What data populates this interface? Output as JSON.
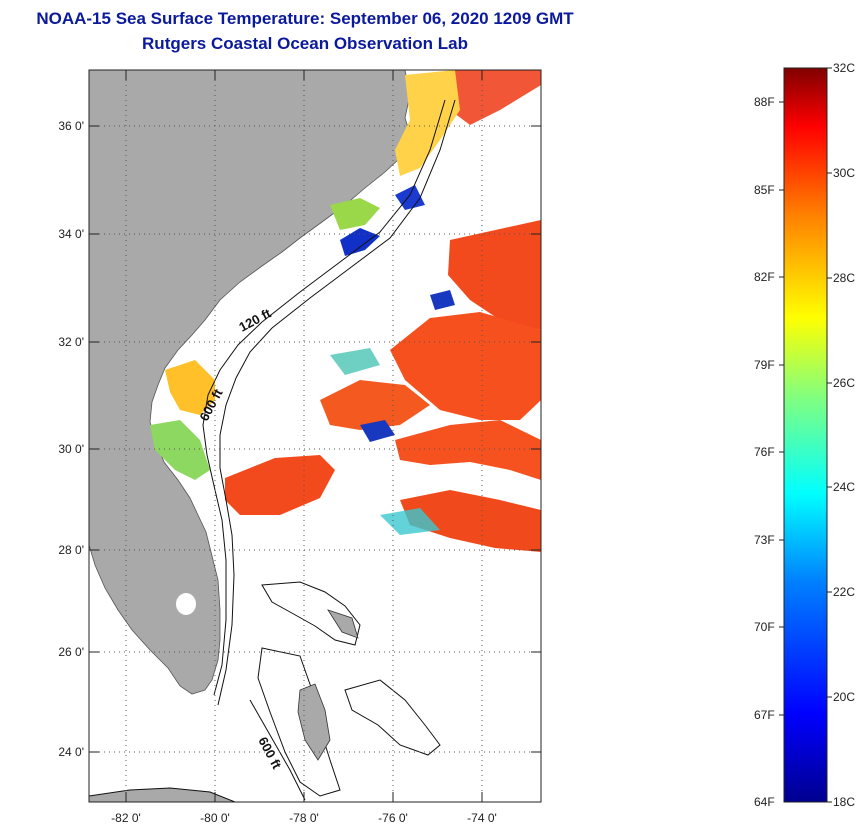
{
  "header": {
    "title": "NOAA-15 Sea Surface Temperature:  September 06, 2020 1209 GMT",
    "subtitle": "Rutgers Coastal Ocean Observation Lab"
  },
  "map": {
    "longitude_labels": [
      "-82 0'",
      "-80 0'",
      "-78 0'",
      "-76 0'",
      "-74 0'"
    ],
    "latitude_labels": [
      "36 0'",
      "34 0'",
      "32 0'",
      "30 0'",
      "28 0'",
      "26 0'",
      "24 0'"
    ],
    "contour_labels": [
      "120 ft",
      "600 ft",
      "600 ft"
    ],
    "colors": {
      "land": "#a9a9a9",
      "ocean_no_data": "#ffffff",
      "warm": "#f6461e",
      "hot": "#e8281a",
      "mid": "#ffb400",
      "cool": "#29c8e0",
      "cold": "#1030c8"
    }
  },
  "colorbar": {
    "fahrenheit_labels": [
      "88F",
      "85F",
      "82F",
      "79F",
      "76F",
      "73F",
      "70F",
      "67F",
      "64F"
    ],
    "celsius_labels": [
      "32C",
      "30C",
      "28C",
      "26C",
      "24C",
      "22C",
      "20C",
      "18C"
    ],
    "range_celsius": [
      18,
      32
    ],
    "colors": [
      "#00008f",
      "#0000ff",
      "#0080ff",
      "#00ffff",
      "#80ff80",
      "#ffff00",
      "#ff8000",
      "#ff0000",
      "#800000"
    ]
  }
}
